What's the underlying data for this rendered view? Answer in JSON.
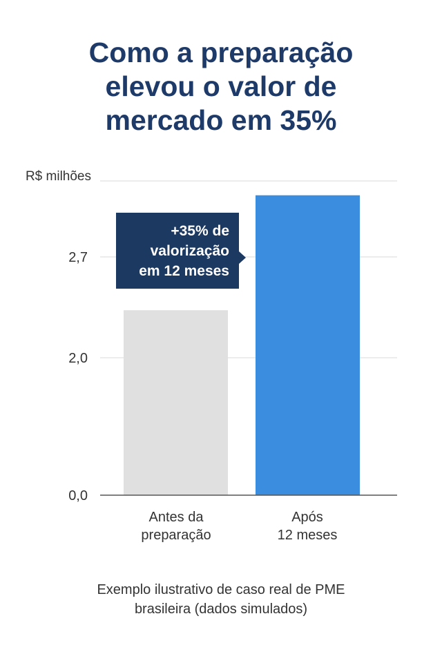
{
  "title_lines": [
    "Como a preparação",
    "elevou o valor de",
    "mercado em 35%"
  ],
  "chart_data": {
    "type": "bar",
    "title": "Como a preparação elevou o valor de mercado em 35%",
    "ylabel": "R$ milhões",
    "categories": [
      "Antes da preparação",
      "Após 12 meses"
    ],
    "category_lines": [
      [
        "Antes da",
        "preparação"
      ],
      [
        "Após",
        "12 meses"
      ]
    ],
    "values": [
      2.33,
      3.13
    ],
    "colors": [
      "#e0e0e0",
      "#3a8ddf"
    ],
    "yticks": [
      0.0,
      2.0,
      2.7
    ],
    "ytick_labels": [
      "0,0",
      "2,0",
      "2,7"
    ],
    "ylim": [
      0,
      3.23
    ],
    "grid": true,
    "annotation_lines": [
      "+35% de",
      "valorização",
      "em 12 meses"
    ]
  },
  "footnote_lines": [
    "Exemplo ilustrativo de caso real de PME",
    "brasileira (dados simulados)"
  ]
}
